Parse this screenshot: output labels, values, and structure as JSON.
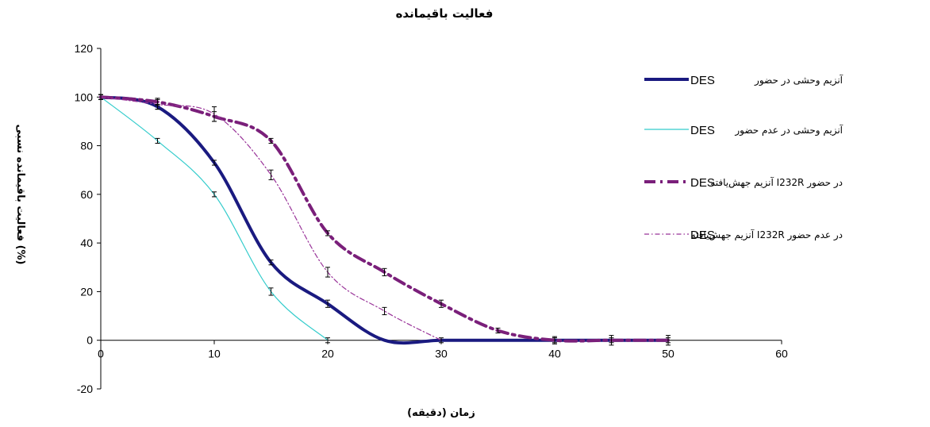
{
  "chart_data": {
    "type": "line",
    "title": "فعالیت باقیمانده",
    "xlabel": "زمان (دقیقه)",
    "ylabel": "فعالیت باقیمانده نسبی (%)",
    "xlim": [
      0,
      60
    ],
    "ylim": [
      -20,
      120
    ],
    "xticks": [
      "0",
      "10",
      "20",
      "30",
      "40",
      "50",
      "60"
    ],
    "yticks": [
      "-20",
      "0",
      "20",
      "40",
      "60",
      "80",
      "100",
      "120"
    ],
    "grid": false,
    "legend_position": "right",
    "x": [
      0,
      5,
      10,
      15,
      20,
      25,
      30,
      35,
      40,
      45,
      50
    ],
    "series": [
      {
        "name_fa": "آنزیم وحشی در حضور",
        "name_en": "DES",
        "color": "#1a1a80",
        "style": "solid-thick",
        "values": [
          100,
          96,
          73,
          32,
          15,
          0,
          0,
          0,
          0,
          0,
          0
        ],
        "errors": [
          1,
          1,
          1,
          1,
          1.5,
          0,
          0,
          0,
          1.5,
          2,
          2
        ]
      },
      {
        "name_fa": "آنزیم وحشی در عدم حضور",
        "name_en": "DES",
        "color": "#33cccc",
        "style": "solid-thin",
        "values": [
          100,
          82,
          60,
          20,
          0,
          null,
          null,
          null,
          null,
          null,
          null
        ],
        "errors": [
          1,
          1,
          1,
          1.5,
          1,
          null,
          null,
          null,
          null,
          null,
          null
        ]
      },
      {
        "name_fa": "آنزیم جهش‌یافته I232R در حضور",
        "name_en": "DES",
        "color": "#7a1f7a",
        "style": "dash-dot-thick",
        "values": [
          100,
          98,
          92,
          82,
          44,
          28,
          15,
          4,
          0,
          0,
          0
        ],
        "errors": [
          1,
          1.5,
          2,
          1,
          1,
          1.5,
          1.5,
          1,
          1,
          1,
          1
        ]
      },
      {
        "name_fa": "آنزیم جهش‌یافته I232R در عدم حضور",
        "name_en": "DES",
        "color": "#993399",
        "style": "dash-dot-thin",
        "values": [
          100,
          97,
          93,
          68,
          28,
          12,
          0,
          null,
          null,
          null,
          null
        ],
        "errors": [
          1,
          2,
          3,
          2,
          2,
          1.5,
          1,
          null,
          null,
          null,
          null
        ]
      }
    ]
  }
}
